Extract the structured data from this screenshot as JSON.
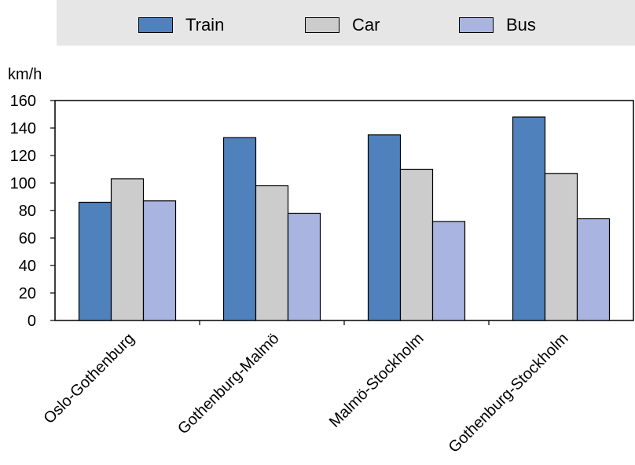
{
  "chart_data": {
    "type": "bar",
    "ylabel": "km/h",
    "ylim": [
      0,
      160
    ],
    "yticks": [
      0,
      20,
      40,
      60,
      80,
      100,
      120,
      140,
      160
    ],
    "categories": [
      "Oslo-Gothenburg",
      "Gothenburg-Malmö",
      "Malmö-Stockholm",
      "Gothenburg-Stockholm"
    ],
    "series": [
      {
        "name": "Train",
        "color": "#4f81bd",
        "values": [
          86,
          133,
          135,
          148
        ]
      },
      {
        "name": "Car",
        "color": "#cccccc",
        "values": [
          103,
          98,
          110,
          107
        ]
      },
      {
        "name": "Bus",
        "color": "#a9b5e0",
        "values": [
          87,
          78,
          72,
          74
        ]
      }
    ],
    "legend_position": "top",
    "grid": false
  }
}
